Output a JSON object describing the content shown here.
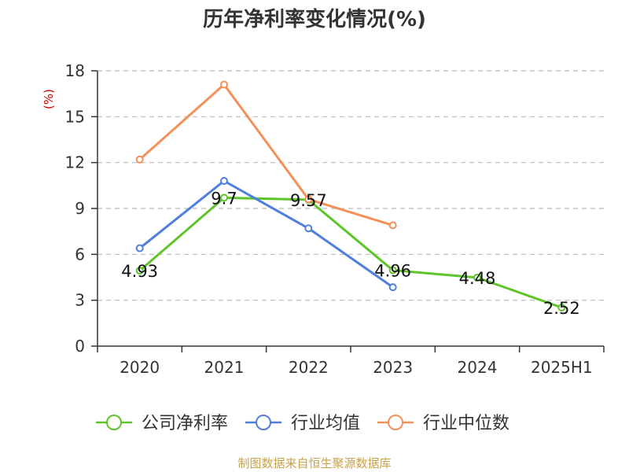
{
  "chart_data": {
    "type": "line",
    "title": "历年净利率变化情况(%)",
    "ylabel": "(%)",
    "xlabel": "",
    "categories": [
      "2020",
      "2021",
      "2022",
      "2023",
      "2024",
      "2025H1"
    ],
    "ylim": [
      0,
      18
    ],
    "yticks": [
      0,
      3,
      6,
      9,
      12,
      15,
      18
    ],
    "grid": true,
    "legend_position": "bottom",
    "series": [
      {
        "name": "公司净利率",
        "color": "#5ec42a",
        "values": [
          4.93,
          9.7,
          9.57,
          4.96,
          4.48,
          2.52
        ],
        "labels": [
          "4.93",
          "9.7",
          "9.57",
          "4.96",
          "4.48",
          "2.52"
        ]
      },
      {
        "name": "行业均值",
        "color": "#4f7fdc",
        "values": [
          6.4,
          10.8,
          7.7,
          3.85,
          null,
          null
        ]
      },
      {
        "name": "行业中位数",
        "color": "#f4905a",
        "values": [
          12.2,
          17.1,
          9.6,
          7.9,
          null,
          null
        ]
      }
    ]
  },
  "footer": {
    "source": "制图数据来自恒生聚源数据库"
  }
}
